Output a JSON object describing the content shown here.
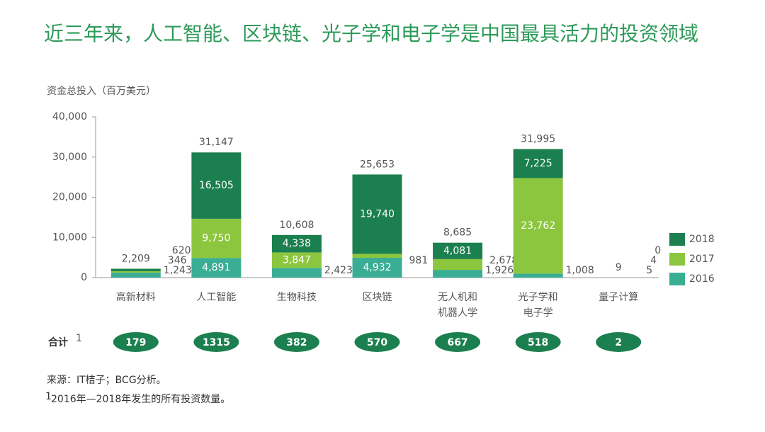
{
  "chart_data": {
    "type": "stacked_bar",
    "title": "近三年来，人工智能、区块链、光子学和电子学是中国最具活力的投资领域",
    "y_label": "资金总投入（百万美元）",
    "categories": [
      [
        "高新材料"
      ],
      [
        "人工智能"
      ],
      [
        "生物科技"
      ],
      [
        "区块链"
      ],
      [
        "无人机和",
        "机器人学"
      ],
      [
        "光子学和",
        "电子学"
      ],
      [
        "量子计算"
      ]
    ],
    "series": [
      {
        "name": "2016",
        "color": "#3aae94",
        "values": [
          1243,
          4891,
          2423,
          4932,
          1926,
          1008,
          5
        ],
        "value_labels": [
          "1,243",
          "4,891",
          "2,423",
          "4,932",
          "1,926",
          "1,008",
          "5"
        ]
      },
      {
        "name": "2017",
        "color": "#8cc63e",
        "values": [
          346,
          9750,
          3847,
          981,
          2678,
          23762,
          4
        ],
        "value_labels": [
          "346",
          "9,750",
          "3,847",
          "981",
          "2,678",
          "23,762",
          "4"
        ]
      },
      {
        "name": "2018",
        "color": "#1b7f4f",
        "values": [
          620,
          16505,
          4338,
          19740,
          4081,
          7225,
          0
        ],
        "value_labels": [
          "620",
          "16,505",
          "4,338",
          "19,740",
          "4,081",
          "7,225",
          "0"
        ]
      }
    ],
    "totals": [
      2209,
      31147,
      10608,
      25653,
      8685,
      31995,
      9
    ],
    "total_labels": [
      "2,209",
      "31,147",
      "10,608",
      "25,653",
      "8,685",
      "31,995",
      "9"
    ],
    "count_row_label": "合计",
    "count_row_note": "1",
    "counts": [
      179,
      1315,
      382,
      570,
      667,
      518,
      2
    ],
    "ylim": [
      0,
      40000
    ],
    "yticks": [
      0,
      {
        "value": 10000,
        "label": "10,000"
      },
      {
        "value": 20000,
        "label": "20,000"
      },
      {
        "value": 30000,
        "label": "30,000"
      },
      {
        "value": 40000,
        "label": "40,000"
      }
    ],
    "source": "来源：IT桔子；BCG分析。",
    "footnote_mark": "1",
    "footnote": "2016年—2018年发生的所有投资数量。"
  }
}
